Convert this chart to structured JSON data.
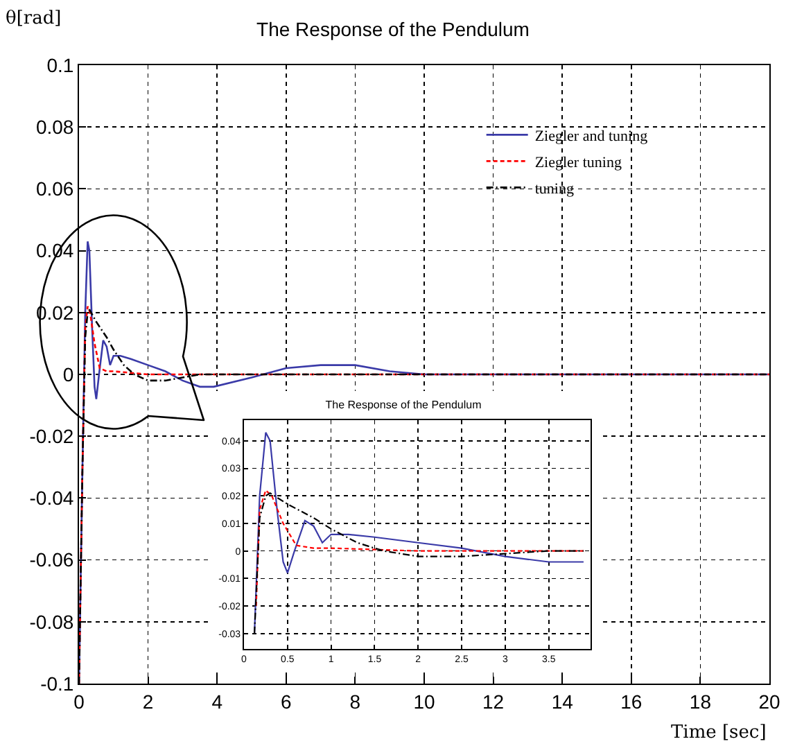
{
  "chart_data": [
    {
      "type": "line",
      "title": "The Response of the Pendulum",
      "xlabel": "Time [sec]",
      "ylabel": "θ[rad]",
      "xlim": [
        0,
        20
      ],
      "xticks": [
        0,
        2,
        4,
        6,
        8,
        10,
        12,
        14,
        16,
        18,
        20
      ],
      "ylim": [
        -0.1,
        0.1
      ],
      "yticks": [
        -0.1,
        -0.08,
        -0.06,
        -0.04,
        -0.02,
        0,
        0.02,
        0.04,
        0.06,
        0.08,
        0.1
      ],
      "grid": true,
      "legend": "top right",
      "series": [
        {
          "name": "Ziegler and tuning",
          "color": "#3a3aa8",
          "line_style": "solid",
          "x": [
            0,
            0.1,
            0.18,
            0.25,
            0.3,
            0.38,
            0.45,
            0.5,
            0.58,
            0.7,
            0.8,
            0.9,
            1.0,
            1.2,
            1.5,
            2.0,
            2.5,
            3.0,
            3.5,
            3.9,
            5,
            6,
            7,
            8,
            9,
            10,
            12,
            15,
            20
          ],
          "values": [
            -0.1,
            -0.03,
            0.02,
            0.043,
            0.04,
            0.015,
            -0.004,
            -0.008,
            0.0,
            0.011,
            0.009,
            0.003,
            0.006,
            0.006,
            0.005,
            0.003,
            0.001,
            -0.002,
            -0.004,
            -0.004,
            -0.001,
            0.002,
            0.003,
            0.003,
            0.001,
            0,
            0,
            0,
            0
          ]
        },
        {
          "name": "Ziegler tuning",
          "color": "#ff0000",
          "line_style": "dashed",
          "x": [
            0,
            0.1,
            0.18,
            0.25,
            0.32,
            0.45,
            0.6,
            0.8,
            1.0,
            1.5,
            2,
            3,
            4,
            6,
            10,
            15,
            20
          ],
          "values": [
            -0.1,
            -0.03,
            0.015,
            0.022,
            0.02,
            0.01,
            0.002,
            0.001,
            0.001,
            0.0005,
            0,
            0,
            0,
            0,
            0,
            0,
            0
          ]
        },
        {
          "name": "tuning",
          "color": "#000000",
          "line_style": "dashdot",
          "x": [
            0,
            0.1,
            0.18,
            0.25,
            0.3,
            0.5,
            0.8,
            1.0,
            1.3,
            1.6,
            2,
            2.5,
            3,
            3.5,
            3.9,
            6,
            10,
            15,
            20
          ],
          "values": [
            -0.1,
            -0.03,
            0.012,
            0.02,
            0.021,
            0.017,
            0.012,
            0.008,
            0.003,
            0,
            -0.002,
            -0.002,
            -0.001,
            0,
            0,
            0,
            0,
            0,
            0
          ]
        }
      ]
    },
    {
      "type": "line",
      "title": "The Response of the Pendulum",
      "xlim": [
        0,
        3.98
      ],
      "xticks": [
        0,
        0.5,
        1,
        1.5,
        2,
        2.5,
        3,
        3.5
      ],
      "ylim": [
        -0.0356,
        0.0475
      ],
      "yticks": [
        -0.03,
        -0.02,
        -0.01,
        0,
        0.01,
        0.02,
        0.03,
        0.04
      ],
      "grid": true,
      "series": [
        {
          "color": "#3a3aa8",
          "line_style": "solid",
          "x": [
            0.12,
            0.18,
            0.25,
            0.3,
            0.38,
            0.45,
            0.5,
            0.58,
            0.7,
            0.8,
            0.9,
            1.0,
            1.2,
            1.5,
            2.0,
            2.5,
            3.0,
            3.5,
            3.9
          ],
          "values": [
            -0.03,
            0.02,
            0.043,
            0.04,
            0.015,
            -0.004,
            -0.008,
            0.0,
            0.011,
            0.009,
            0.003,
            0.006,
            0.006,
            0.005,
            0.003,
            0.001,
            -0.002,
            -0.004,
            -0.004
          ]
        },
        {
          "color": "#ff0000",
          "line_style": "dashed",
          "x": [
            0.14,
            0.18,
            0.25,
            0.32,
            0.45,
            0.6,
            0.8,
            1.0,
            1.5,
            2,
            3,
            3.9
          ],
          "values": [
            -0.02,
            0.015,
            0.022,
            0.02,
            0.01,
            0.002,
            0.001,
            0.001,
            0.0005,
            0,
            0,
            0
          ]
        },
        {
          "color": "#000000",
          "line_style": "dashdot",
          "x": [
            0.12,
            0.18,
            0.25,
            0.3,
            0.5,
            0.8,
            1.0,
            1.3,
            1.6,
            2,
            2.5,
            3,
            3.5,
            3.9
          ],
          "values": [
            -0.03,
            0.012,
            0.02,
            0.021,
            0.017,
            0.012,
            0.008,
            0.003,
            0,
            -0.002,
            -0.002,
            -0.001,
            0,
            0
          ]
        }
      ]
    }
  ]
}
